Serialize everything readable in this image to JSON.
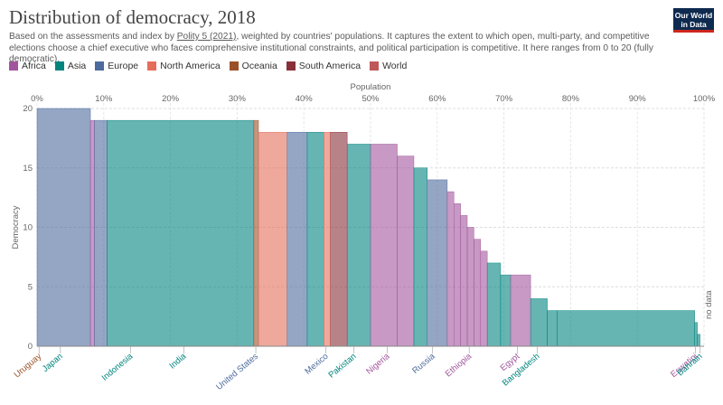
{
  "header": {
    "title": "Distribution of democracy, 2018",
    "subtitle_pre": "Based on the assessments and index by ",
    "subtitle_link": "Polity 5 (2021)",
    "subtitle_post": ", weighted by countries' populations. It captures the extent to which open, multi-party, and competitive elections choose a chief executive who faces comprehensive institutional constraints, and political participation is competitive. It here ranges from 0 to 20 (fully democratic).",
    "logo_line1": "Our World",
    "logo_line2": "in Data"
  },
  "legend": [
    {
      "name": "Africa",
      "color": "#a2559c"
    },
    {
      "name": "Asia",
      "color": "#00847e"
    },
    {
      "name": "Europe",
      "color": "#4c6a9c"
    },
    {
      "name": "North America",
      "color": "#e56e5a"
    },
    {
      "name": "Oceania",
      "color": "#9a5129"
    },
    {
      "name": "South America",
      "color": "#883039"
    },
    {
      "name": "World",
      "color": "#be5859"
    }
  ],
  "chart_data": {
    "type": "area",
    "xlabel": "Population",
    "ylabel": "Democracy",
    "xlim": [
      0,
      100
    ],
    "ylim": [
      0,
      20
    ],
    "x_ticks": [
      "0%",
      "10%",
      "20%",
      "30%",
      "40%",
      "50%",
      "60%",
      "70%",
      "80%",
      "90%",
      "100%"
    ],
    "y_ticks": [
      "0",
      "5",
      "10",
      "15",
      "20"
    ],
    "no_data_label": "no data",
    "segments": [
      {
        "x0": 0,
        "x1": 8,
        "y": 20,
        "region": "Europe"
      },
      {
        "x0": 8,
        "x1": 8.6,
        "y": 19,
        "region": "Africa"
      },
      {
        "x0": 8.6,
        "x1": 10.5,
        "y": 19,
        "region": "Europe"
      },
      {
        "x0": 10.5,
        "x1": 32.5,
        "y": 19,
        "region": "Asia"
      },
      {
        "x0": 32.5,
        "x1": 33.2,
        "y": 19,
        "region": "Oceania"
      },
      {
        "x0": 33.2,
        "x1": 37.5,
        "y": 18,
        "region": "North America"
      },
      {
        "x0": 37.5,
        "x1": 40.5,
        "y": 18,
        "region": "Europe"
      },
      {
        "x0": 40.5,
        "x1": 43,
        "y": 18,
        "region": "Asia"
      },
      {
        "x0": 43,
        "x1": 44,
        "y": 18,
        "region": "North America"
      },
      {
        "x0": 44,
        "x1": 46.5,
        "y": 18,
        "region": "South America"
      },
      {
        "x0": 46.5,
        "x1": 50,
        "y": 17,
        "region": "Asia"
      },
      {
        "x0": 50,
        "x1": 54,
        "y": 17,
        "region": "Africa"
      },
      {
        "x0": 54,
        "x1": 56.5,
        "y": 16,
        "region": "Africa"
      },
      {
        "x0": 56.5,
        "x1": 58.5,
        "y": 15,
        "region": "Asia"
      },
      {
        "x0": 58.5,
        "x1": 61.5,
        "y": 14,
        "region": "Europe"
      },
      {
        "x0": 61.5,
        "x1": 62.5,
        "y": 13,
        "region": "Africa"
      },
      {
        "x0": 62.5,
        "x1": 63.5,
        "y": 12,
        "region": "Africa"
      },
      {
        "x0": 63.5,
        "x1": 64.5,
        "y": 11,
        "region": "Africa"
      },
      {
        "x0": 64.5,
        "x1": 65.5,
        "y": 10,
        "region": "Africa"
      },
      {
        "x0": 65.5,
        "x1": 66.5,
        "y": 9,
        "region": "Africa"
      },
      {
        "x0": 66.5,
        "x1": 67.5,
        "y": 8,
        "region": "Africa"
      },
      {
        "x0": 67.5,
        "x1": 69.5,
        "y": 7,
        "region": "Asia"
      },
      {
        "x0": 69.5,
        "x1": 71,
        "y": 6,
        "region": "Asia"
      },
      {
        "x0": 71,
        "x1": 74,
        "y": 6,
        "region": "Africa"
      },
      {
        "x0": 74,
        "x1": 76.5,
        "y": 4,
        "region": "Asia"
      },
      {
        "x0": 76.5,
        "x1": 78,
        "y": 3,
        "region": "Asia"
      },
      {
        "x0": 78,
        "x1": 98.6,
        "y": 3,
        "region": "Asia"
      },
      {
        "x0": 98.6,
        "x1": 99,
        "y": 2,
        "region": "Asia"
      },
      {
        "x0": 99,
        "x1": 99.4,
        "y": 1,
        "region": "Asia"
      }
    ],
    "country_labels": [
      {
        "name": "Uruguay",
        "x": 0.3,
        "color": "#9a5129"
      },
      {
        "name": "Japan",
        "x": 3.5,
        "color": "#00847e"
      },
      {
        "name": "Indonesia",
        "x": 14,
        "color": "#00847e"
      },
      {
        "name": "India",
        "x": 22,
        "color": "#00847e"
      },
      {
        "name": "United States",
        "x": 32.8,
        "color": "#4c6a9c"
      },
      {
        "name": "Mexico",
        "x": 43.3,
        "color": "#4c6a9c"
      },
      {
        "name": "Pakistan",
        "x": 47.5,
        "color": "#00847e"
      },
      {
        "name": "Nigeria",
        "x": 52.5,
        "color": "#a2559c"
      },
      {
        "name": "Russia",
        "x": 59.3,
        "color": "#4c6a9c"
      },
      {
        "name": "Ethiopia",
        "x": 64.8,
        "color": "#a2559c"
      },
      {
        "name": "Egypt",
        "x": 72,
        "color": "#a2559c"
      },
      {
        "name": "Bangladesh",
        "x": 75,
        "color": "#00847e"
      },
      {
        "name": "Eswatini",
        "x": 98.7,
        "color": "#a2559c"
      },
      {
        "name": "Bahrain",
        "x": 99.4,
        "color": "#00847e"
      }
    ]
  }
}
